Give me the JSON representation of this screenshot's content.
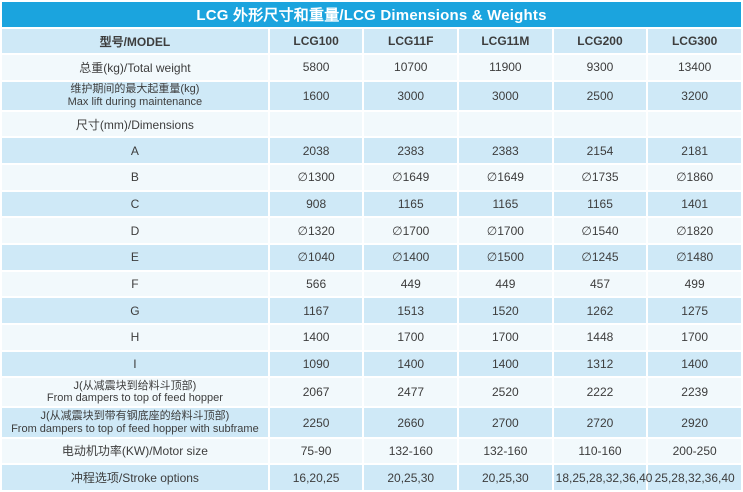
{
  "title": "LCG 外形尺寸和重量/LCG Dimensions & Weights",
  "columns": [
    "型号/MODEL",
    "LCG100",
    "LCG11F",
    "LCG11M",
    "LCG200",
    "LCG300"
  ],
  "rows": [
    {
      "label": "总重(kg)/Total weight",
      "values": [
        "5800",
        "10700",
        "11900",
        "9300",
        "13400"
      ]
    },
    {
      "label": "维护期间的最大起重量(kg)",
      "sublabel": "Max lift during maintenance",
      "values": [
        "1600",
        "3000",
        "3000",
        "2500",
        "3200"
      ]
    },
    {
      "label": "尺寸(mm)/Dimensions",
      "values": [
        "",
        "",
        "",
        "",
        ""
      ]
    },
    {
      "label": "A",
      "values": [
        "2038",
        "2383",
        "2383",
        "2154",
        "2181"
      ]
    },
    {
      "label": "B",
      "values": [
        "∅1300",
        "∅1649",
        "∅1649",
        "∅1735",
        "∅1860"
      ]
    },
    {
      "label": "C",
      "values": [
        "908",
        "1165",
        "1165",
        "1165",
        "1401"
      ]
    },
    {
      "label": "D",
      "values": [
        "∅1320",
        "∅1700",
        "∅1700",
        "∅1540",
        "∅1820"
      ]
    },
    {
      "label": "E",
      "values": [
        "∅1040",
        "∅1400",
        "∅1500",
        "∅1245",
        "∅1480"
      ]
    },
    {
      "label": "F",
      "values": [
        "566",
        "449",
        "449",
        "457",
        "499"
      ]
    },
    {
      "label": "G",
      "values": [
        "1167",
        "1513",
        "1520",
        "1262",
        "1275"
      ]
    },
    {
      "label": "H",
      "values": [
        "1400",
        "1700",
        "1700",
        "1448",
        "1700"
      ]
    },
    {
      "label": "I",
      "values": [
        "1090",
        "1400",
        "1400",
        "1312",
        "1400"
      ]
    },
    {
      "label": "J(从减震块到给料斗顶部)",
      "sublabel": "From dampers to top of feed hopper",
      "values": [
        "2067",
        "2477",
        "2520",
        "2222",
        "2239"
      ]
    },
    {
      "label": "J(从减震块到带有钢底座的给料斗顶部)",
      "sublabel": "From dampers to top of feed hopper with subframe",
      "values": [
        "2250",
        "2660",
        "2700",
        "2720",
        "2920"
      ]
    },
    {
      "label": "电动机功率(KW)/Motor size",
      "values": [
        "75-90",
        "132-160",
        "132-160",
        "110-160",
        "200-250"
      ]
    },
    {
      "label": "冲程选项/Stroke options",
      "values": [
        "16,20,25",
        "20,25,30",
        "20,25,30",
        "18,25,28,32,36,40",
        "25,28,32,36,40"
      ]
    }
  ],
  "colors": {
    "title-bg": "#1ba4de",
    "title-text": "#ffffff",
    "row-blue": "#cfe9f7",
    "row-white": "#f2f9fc",
    "gap": "#ffffff",
    "text": "#3d3d3d"
  }
}
